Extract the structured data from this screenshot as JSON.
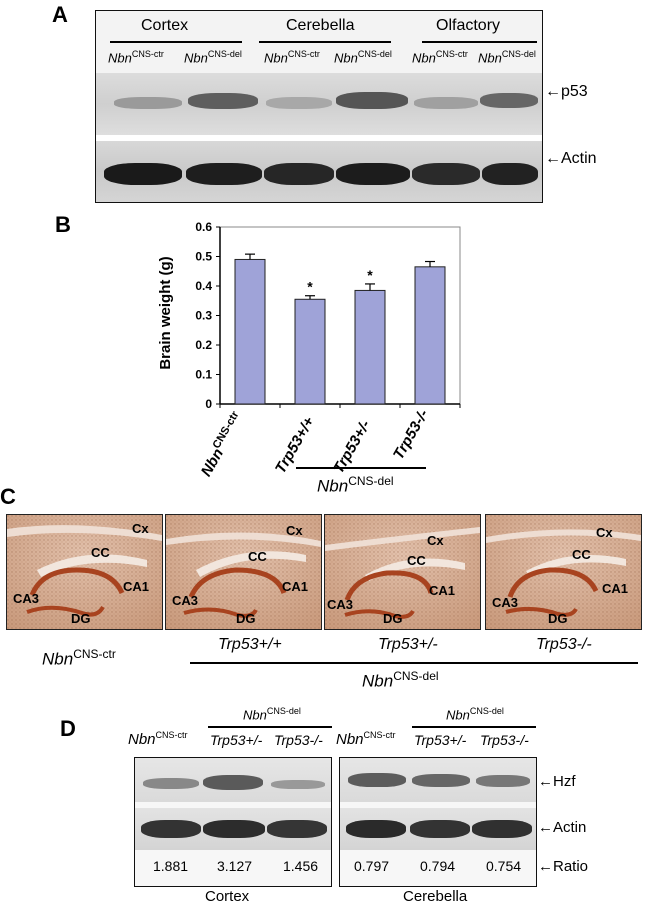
{
  "panelA": {
    "letter": "A",
    "groups": [
      "Cortex",
      "Cerebella",
      "Olfactory"
    ],
    "lane_base": "Nbn",
    "lane_suffix_ctr": "CNS-ctr",
    "lane_suffix_del": "CNS-del",
    "markers": [
      "p53",
      "Actin"
    ]
  },
  "panelB": {
    "letter": "B",
    "ylabel": "Brain weight (g)",
    "yticks": [
      "0",
      "0.1",
      "0.2",
      "0.3",
      "0.4",
      "0.5",
      "0.6"
    ],
    "xlabels": [
      "Nbn",
      "Trp53+/+",
      "Trp53+/-",
      "Trp53-/-"
    ],
    "xlabel0_sup": "CNS-ctr",
    "group_label": "Nbn",
    "group_label_sup": "CNS-del",
    "significance": "*"
  },
  "chart_data": {
    "type": "bar",
    "categories": [
      "NbnCNS-ctr",
      "Trp53+/+",
      "Trp53+/-",
      "Trp53-/-"
    ],
    "values": [
      0.49,
      0.355,
      0.385,
      0.465
    ],
    "errors": [
      0.018,
      0.012,
      0.022,
      0.018
    ],
    "significant": [
      false,
      true,
      true,
      false
    ],
    "ylabel": "Brain weight (g)",
    "ylim": [
      0,
      0.6
    ],
    "bar_color": "#9fa3d8",
    "grid": false
  },
  "panelC": {
    "letter": "C",
    "regions": [
      "Cx",
      "CC",
      "CA1",
      "CA3",
      "DG"
    ],
    "ctr_base": "Nbn",
    "ctr_sup": "CNS-ctr",
    "genotypes": [
      "Trp53+/+",
      "Trp53+/-",
      "Trp53-/-"
    ],
    "group_base": "Nbn",
    "group_sup": "CNS-del"
  },
  "panelD": {
    "letter": "D",
    "base": "Nbn",
    "ctr_sup": "CNS-ctr",
    "del_sup": "CNS-del",
    "genotypes": [
      "Trp53+/-",
      "Trp53-/-"
    ],
    "markers": [
      "Hzf",
      "Actin",
      "Ratio"
    ],
    "cortex_ratios": [
      "1.881",
      "3.127",
      "1.456"
    ],
    "cerebella_ratios": [
      "0.797",
      "0.794",
      "0.754"
    ],
    "tissues": [
      "Cortex",
      "Cerebella"
    ]
  }
}
